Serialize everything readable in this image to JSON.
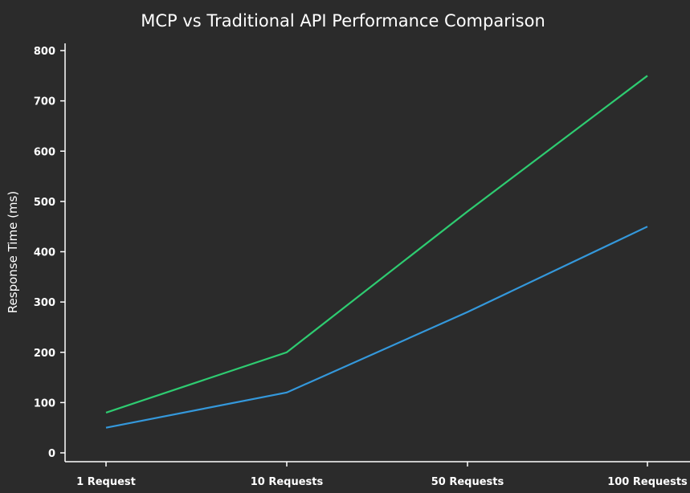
{
  "chart_data": {
    "type": "line",
    "title": "MCP vs Traditional API Performance Comparison",
    "xlabel": "",
    "ylabel": "Response Time (ms)",
    "categories": [
      "1 Request",
      "10 Requests",
      "50 Requests",
      "100 Requests"
    ],
    "ylim": [
      0,
      800
    ],
    "yticks": [
      0,
      100,
      200,
      300,
      400,
      500,
      600,
      700,
      800
    ],
    "grid": false,
    "series": [
      {
        "values": [
          80,
          200,
          480,
          750
        ],
        "color": "#2ecc71"
      },
      {
        "values": [
          50,
          120,
          280,
          450
        ],
        "color": "#3498db"
      }
    ]
  }
}
